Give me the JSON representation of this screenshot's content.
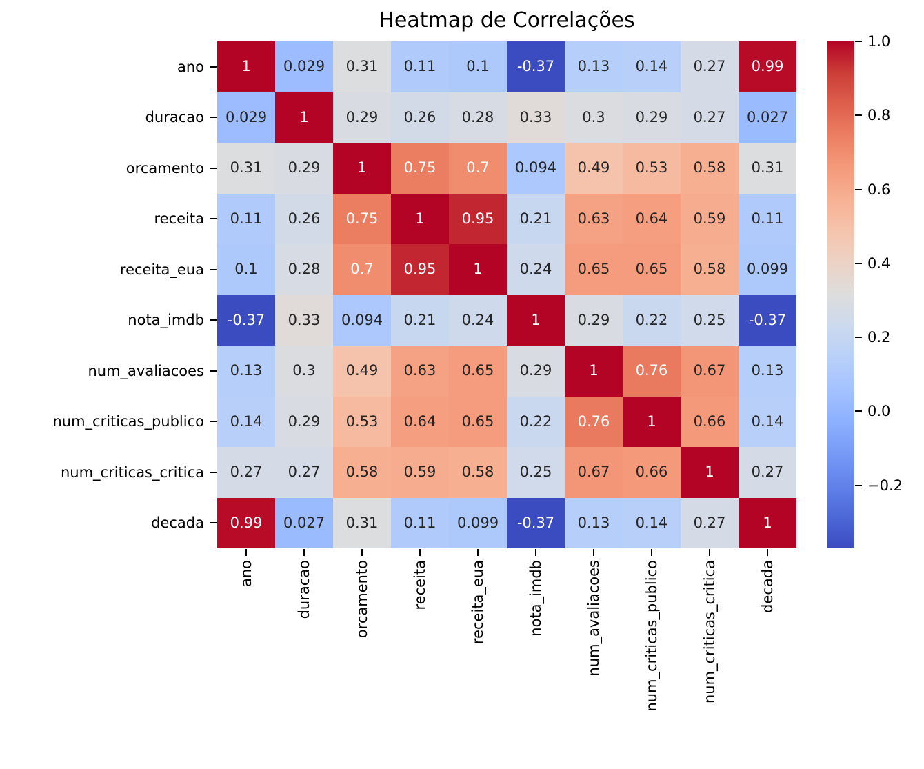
{
  "title": "Heatmap de Correlações",
  "chart_data": {
    "type": "heatmap",
    "title": "Heatmap de Correlações",
    "labels": [
      "ano",
      "duracao",
      "orcamento",
      "receita",
      "receita_eua",
      "nota_imdb",
      "num_avaliacoes",
      "num_criticas_publico",
      "num_criticas_critica",
      "decada"
    ],
    "matrix": [
      [
        "1",
        "0.029",
        "0.31",
        "0.11",
        "0.1",
        "-0.37",
        "0.13",
        "0.14",
        "0.27",
        "0.99"
      ],
      [
        "0.029",
        "1",
        "0.29",
        "0.26",
        "0.28",
        "0.33",
        "0.3",
        "0.29",
        "0.27",
        "0.027"
      ],
      [
        "0.31",
        "0.29",
        "1",
        "0.75",
        "0.7",
        "0.094",
        "0.49",
        "0.53",
        "0.58",
        "0.31"
      ],
      [
        "0.11",
        "0.26",
        "0.75",
        "1",
        "0.95",
        "0.21",
        "0.63",
        "0.64",
        "0.59",
        "0.11"
      ],
      [
        "0.1",
        "0.28",
        "0.7",
        "0.95",
        "1",
        "0.24",
        "0.65",
        "0.65",
        "0.58",
        "0.099"
      ],
      [
        "-0.37",
        "0.33",
        "0.094",
        "0.21",
        "0.24",
        "1",
        "0.29",
        "0.22",
        "0.25",
        "-0.37"
      ],
      [
        "0.13",
        "0.3",
        "0.49",
        "0.63",
        "0.65",
        "0.29",
        "1",
        "0.76",
        "0.67",
        "0.13"
      ],
      [
        "0.14",
        "0.29",
        "0.53",
        "0.64",
        "0.65",
        "0.22",
        "0.76",
        "1",
        "0.66",
        "0.14"
      ],
      [
        "0.27",
        "0.27",
        "0.58",
        "0.59",
        "0.58",
        "0.25",
        "0.67",
        "0.66",
        "1",
        "0.27"
      ],
      [
        "0.99",
        "0.027",
        "0.31",
        "0.11",
        "0.099",
        "-0.37",
        "0.13",
        "0.14",
        "0.27",
        "1"
      ]
    ],
    "colormap": "coolwarm",
    "vmin": -0.37,
    "vmax": 1.0,
    "colorbar": {
      "tick_labels": [
        "1.0",
        "0.8",
        "0.6",
        "0.4",
        "0.2",
        "0.0",
        "−0.2"
      ],
      "tick_values": [
        1.0,
        0.8,
        0.6,
        0.4,
        0.2,
        0.0,
        -0.2
      ],
      "position": "right"
    },
    "grid": false,
    "legend_position": "right"
  },
  "colors": {
    "background": "#ffffff",
    "annotation_dark": "#262626",
    "annotation_light": "#ffffff",
    "axis_text": "#000000",
    "tick_mark": "#000000",
    "coolwarm_stops": [
      [
        0.0,
        59,
        76,
        192
      ],
      [
        0.0625,
        77,
        104,
        215
      ],
      [
        0.125,
        98,
        130,
        234
      ],
      [
        0.1875,
        119,
        154,
        247
      ],
      [
        0.25,
        141,
        176,
        254
      ],
      [
        0.3125,
        163,
        194,
        255
      ],
      [
        0.375,
        184,
        208,
        249
      ],
      [
        0.4375,
        204,
        217,
        238
      ],
      [
        0.5,
        221,
        221,
        221
      ],
      [
        0.5625,
        236,
        211,
        197
      ],
      [
        0.625,
        245,
        196,
        173
      ],
      [
        0.6875,
        247,
        177,
        148
      ],
      [
        0.75,
        244,
        154,
        123
      ],
      [
        0.8125,
        236,
        127,
        99
      ],
      [
        0.875,
        222,
        96,
        77
      ],
      [
        0.9375,
        203,
        62,
        56
      ],
      [
        1.0,
        180,
        4,
        38
      ]
    ]
  }
}
